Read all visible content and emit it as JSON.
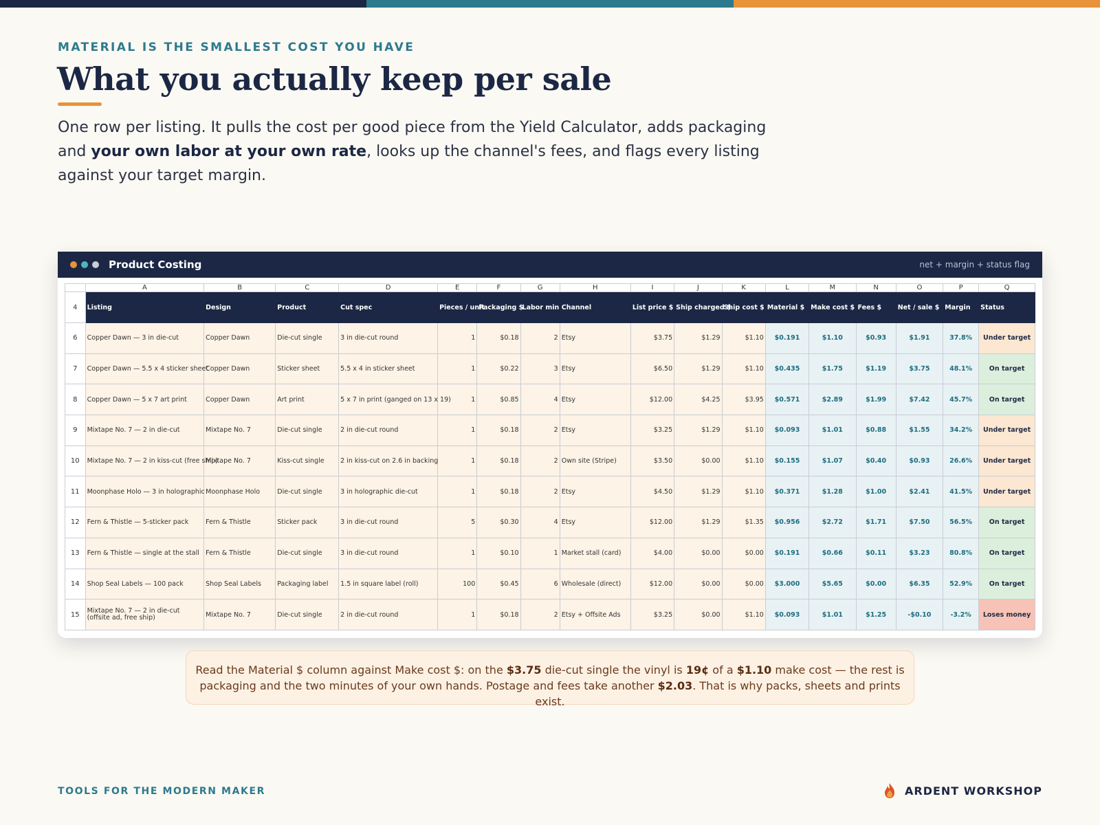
{
  "brand_colors": {
    "navy": "#1b2744",
    "teal": "#2d7a8e",
    "orange": "#e8923a"
  },
  "header": {
    "eyebrow": "MATERIAL IS THE SMALLEST COST YOU HAVE",
    "title": "What you actually keep per sale",
    "lead_part1": "One row per listing. It pulls the cost per good piece from the Yield Calculator, adds packaging and ",
    "lead_bold": "your own labor at your own rate",
    "lead_part2": ", looks up the channel's fees, and flags every listing against your target margin."
  },
  "window": {
    "title": "Product Costing",
    "subtitle": "net + margin + status flag",
    "dot_colors": [
      "#e8923a",
      "#4fb3c4",
      "#c9cdd8"
    ]
  },
  "sheet": {
    "column_letters": [
      "A",
      "B",
      "C",
      "D",
      "E",
      "F",
      "G",
      "H",
      "I",
      "J",
      "K",
      "L",
      "M",
      "N",
      "O",
      "P",
      "Q"
    ],
    "header_row_number": "4",
    "headers": [
      "Listing",
      "Design",
      "Product",
      "Cut spec",
      "Pieces / unit",
      "Packaging $",
      "Labor min",
      "Channel",
      "List price $",
      "Ship charged $",
      "Ship cost $",
      "Material $",
      "Make cost $",
      "Fees $",
      "Net / sale $",
      "Margin",
      "Status"
    ],
    "rows": [
      {
        "row": "6",
        "listing": "Copper Dawn — 3 in die-cut",
        "design": "Copper Dawn",
        "product": "Die-cut single",
        "cut": "3 in die-cut round",
        "pieces": "1",
        "packaging": "$0.18",
        "labor": "2",
        "channel": "Etsy",
        "list": "$3.75",
        "ship_charged": "$1.29",
        "ship_cost": "$1.10",
        "material": "$0.191",
        "make": "$1.10",
        "fees": "$0.93",
        "net": "$1.91",
        "margin": "37.8%",
        "status": "Under target",
        "status_kind": "under"
      },
      {
        "row": "7",
        "listing": "Copper Dawn — 5.5 x 4 sticker sheet",
        "design": "Copper Dawn",
        "product": "Sticker sheet",
        "cut": "5.5 x 4 in sticker sheet",
        "pieces": "1",
        "packaging": "$0.22",
        "labor": "3",
        "channel": "Etsy",
        "list": "$6.50",
        "ship_charged": "$1.29",
        "ship_cost": "$1.10",
        "material": "$0.435",
        "make": "$1.75",
        "fees": "$1.19",
        "net": "$3.75",
        "margin": "48.1%",
        "status": "On target",
        "status_kind": "on"
      },
      {
        "row": "8",
        "listing": "Copper Dawn — 5 x 7 art print",
        "design": "Copper Dawn",
        "product": "Art print",
        "cut": "5 x 7 in print (ganged on 13 x 19)",
        "pieces": "1",
        "packaging": "$0.85",
        "labor": "4",
        "channel": "Etsy",
        "list": "$12.00",
        "ship_charged": "$4.25",
        "ship_cost": "$3.95",
        "material": "$0.571",
        "make": "$2.89",
        "fees": "$1.99",
        "net": "$7.42",
        "margin": "45.7%",
        "status": "On target",
        "status_kind": "on"
      },
      {
        "row": "9",
        "listing": "Mixtape No. 7 — 2 in die-cut",
        "design": "Mixtape No. 7",
        "product": "Die-cut single",
        "cut": "2 in die-cut round",
        "pieces": "1",
        "packaging": "$0.18",
        "labor": "2",
        "channel": "Etsy",
        "list": "$3.25",
        "ship_charged": "$1.29",
        "ship_cost": "$1.10",
        "material": "$0.093",
        "make": "$1.01",
        "fees": "$0.88",
        "net": "$1.55",
        "margin": "34.2%",
        "status": "Under target",
        "status_kind": "under"
      },
      {
        "row": "10",
        "listing": "Mixtape No. 7 — 2 in kiss-cut (free ship)",
        "design": "Mixtape No. 7",
        "product": "Kiss-cut single",
        "cut": "2 in kiss-cut on 2.6 in backing",
        "pieces": "1",
        "packaging": "$0.18",
        "labor": "2",
        "channel": "Own site (Stripe)",
        "list": "$3.50",
        "ship_charged": "$0.00",
        "ship_cost": "$1.10",
        "material": "$0.155",
        "make": "$1.07",
        "fees": "$0.40",
        "net": "$0.93",
        "margin": "26.6%",
        "status": "Under target",
        "status_kind": "under"
      },
      {
        "row": "11",
        "listing": "Moonphase Holo — 3 in holographic",
        "design": "Moonphase Holo",
        "product": "Die-cut single",
        "cut": "3 in holographic die-cut",
        "pieces": "1",
        "packaging": "$0.18",
        "labor": "2",
        "channel": "Etsy",
        "list": "$4.50",
        "ship_charged": "$1.29",
        "ship_cost": "$1.10",
        "material": "$0.371",
        "make": "$1.28",
        "fees": "$1.00",
        "net": "$2.41",
        "margin": "41.5%",
        "status": "Under target",
        "status_kind": "under"
      },
      {
        "row": "12",
        "listing": "Fern & Thistle — 5-sticker pack",
        "design": "Fern & Thistle",
        "product": "Sticker pack",
        "cut": "3 in die-cut round",
        "pieces": "5",
        "packaging": "$0.30",
        "labor": "4",
        "channel": "Etsy",
        "list": "$12.00",
        "ship_charged": "$1.29",
        "ship_cost": "$1.35",
        "material": "$0.956",
        "make": "$2.72",
        "fees": "$1.71",
        "net": "$7.50",
        "margin": "56.5%",
        "status": "On target",
        "status_kind": "on"
      },
      {
        "row": "13",
        "listing": "Fern & Thistle — single at the stall",
        "design": "Fern & Thistle",
        "product": "Die-cut single",
        "cut": "3 in die-cut round",
        "pieces": "1",
        "packaging": "$0.10",
        "labor": "1",
        "channel": "Market stall (card)",
        "list": "$4.00",
        "ship_charged": "$0.00",
        "ship_cost": "$0.00",
        "material": "$0.191",
        "make": "$0.66",
        "fees": "$0.11",
        "net": "$3.23",
        "margin": "80.8%",
        "status": "On target",
        "status_kind": "on"
      },
      {
        "row": "14",
        "listing": "Shop Seal Labels — 100 pack",
        "design": "Shop Seal Labels",
        "product": "Packaging label",
        "cut": "1.5 in square label (roll)",
        "pieces": "100",
        "packaging": "$0.45",
        "labor": "6",
        "channel": "Wholesale (direct)",
        "list": "$12.00",
        "ship_charged": "$0.00",
        "ship_cost": "$0.00",
        "material": "$3.000",
        "make": "$5.65",
        "fees": "$0.00",
        "net": "$6.35",
        "margin": "52.9%",
        "status": "On target",
        "status_kind": "on"
      },
      {
        "row": "15",
        "listing": "Mixtape No. 7 — 2 in die-cut (offsite ad, free ship)",
        "design": "Mixtape No. 7",
        "product": "Die-cut single",
        "cut": "2 in die-cut round",
        "pieces": "1",
        "packaging": "$0.18",
        "labor": "2",
        "channel": "Etsy + Offsite Ads",
        "list": "$3.25",
        "ship_charged": "$0.00",
        "ship_cost": "$1.10",
        "material": "$0.093",
        "make": "$1.01",
        "fees": "$1.25",
        "net": "-$0.10",
        "margin": "-3.2%",
        "status": "Loses money",
        "status_kind": "lose"
      }
    ]
  },
  "callout": {
    "t1": "Read the Material $ column against Make cost $: on the ",
    "b1": "$3.75",
    "t2": " die-cut single the vinyl is ",
    "b2": "19¢",
    "t3": " of a ",
    "b3": "$1.10",
    "t4": " make cost — the rest is packaging and the two minutes of your own hands. Postage and fees take another ",
    "b4": "$2.03",
    "t5": ". That is why packs, sheets and prints exist."
  },
  "footer": {
    "left": "TOOLS FOR THE MODERN MAKER",
    "brand": "ARDENT WORKSHOP",
    "brand_icon": "flame-icon"
  }
}
